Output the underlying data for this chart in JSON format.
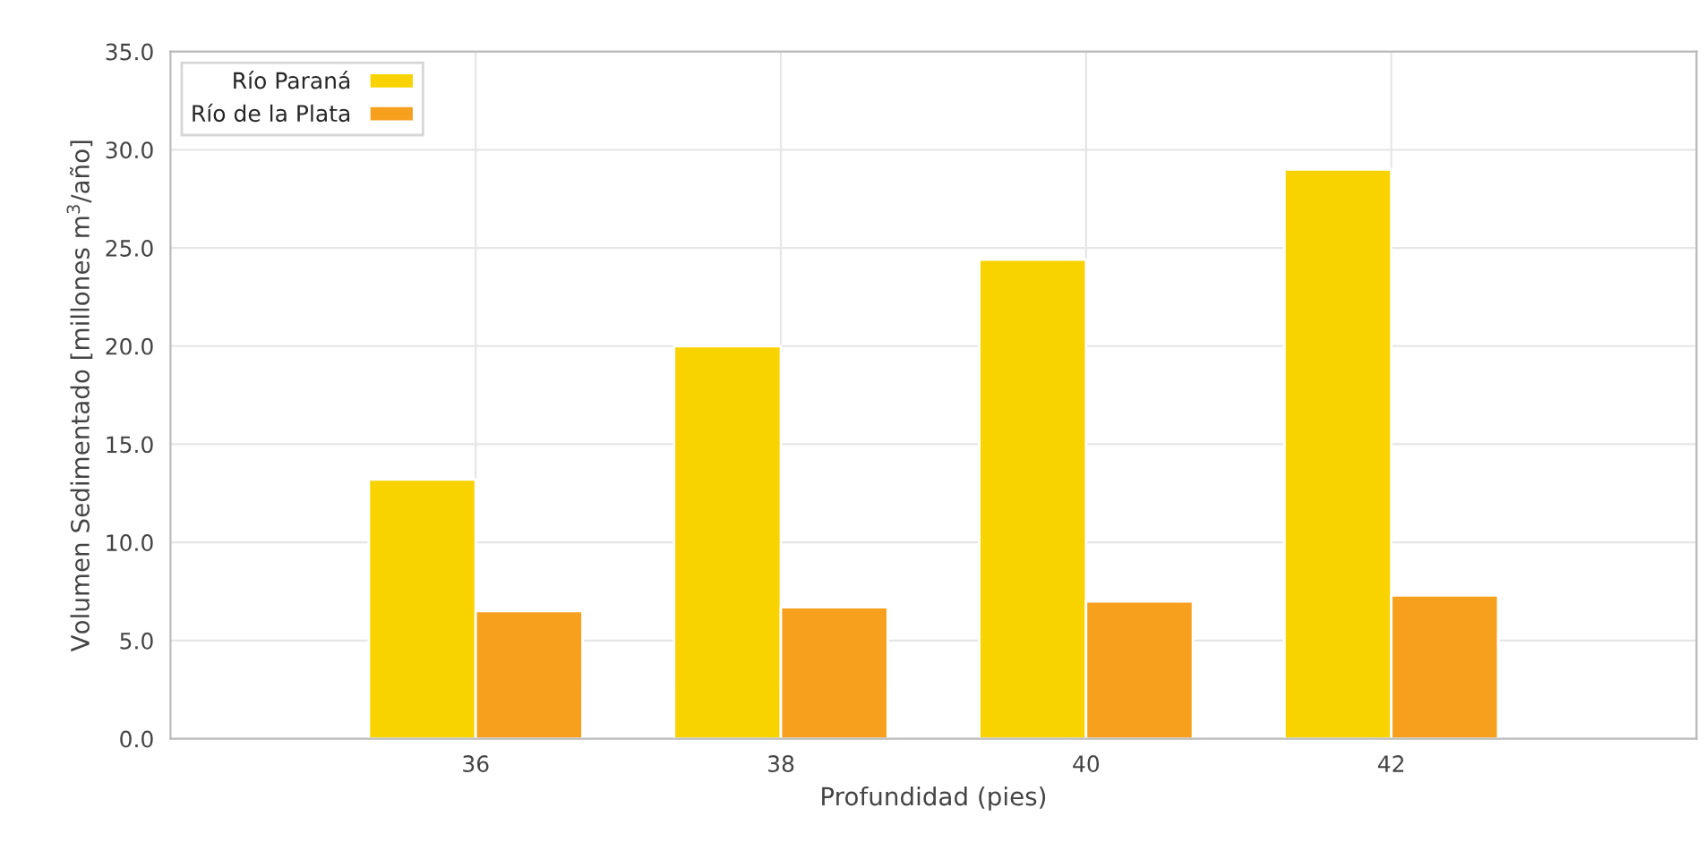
{
  "chart_data": {
    "type": "bar",
    "xlabel": "Profundidad (pies)",
    "ylabel": "Volumen Sedimentado [millones m$^{3}$/año]",
    "categories": [
      "36",
      "38",
      "40",
      "42"
    ],
    "series": [
      {
        "name": "Río Paraná",
        "color": "#f9d300",
        "values": [
          13.2,
          20.0,
          24.4,
          29.0
        ]
      },
      {
        "name": "Río de la Plata",
        "color": "#f7a01e",
        "values": [
          6.5,
          6.7,
          7.0,
          7.3
        ]
      }
    ],
    "ylim": [
      0,
      35
    ],
    "yticks": [
      {
        "value": 0,
        "label": "0.0"
      },
      {
        "value": 5,
        "label": "5.0"
      },
      {
        "value": 10,
        "label": "10.0"
      },
      {
        "value": 15,
        "label": "15.0"
      },
      {
        "value": 20,
        "label": "20.0"
      },
      {
        "value": 25,
        "label": "25.0"
      },
      {
        "value": 30,
        "label": "30.0"
      },
      {
        "value": 35,
        "label": "35.0"
      }
    ],
    "grid": true,
    "legend": "top left"
  }
}
